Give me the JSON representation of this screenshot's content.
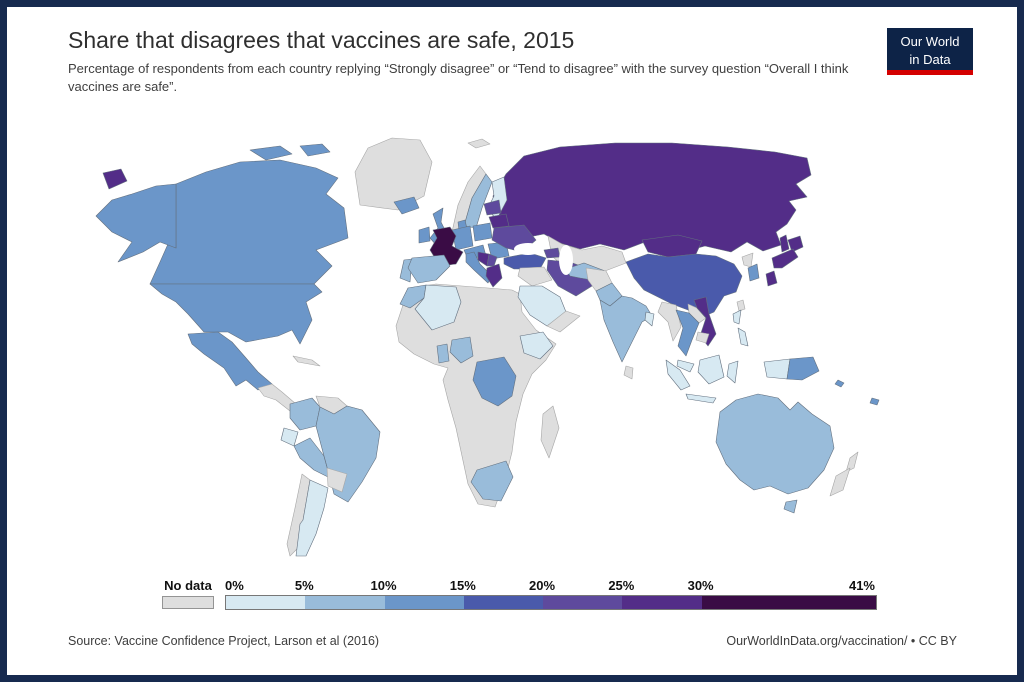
{
  "header": {
    "title": "Share that disagrees that vaccines are safe, 2015",
    "subtitle": "Percentage of respondents from each country replying “Strongly disagree” or “Tend to disagree” with the survey question “Overall I think vaccines are safe”."
  },
  "logo": {
    "line1": "Our World",
    "line2": "in Data",
    "background": "#0d2347",
    "accent": "#d40000"
  },
  "legend": {
    "no_data_label": "No data",
    "no_data_color": "#dedede",
    "tick_values": [
      0,
      5,
      10,
      15,
      20,
      25,
      30,
      41
    ],
    "tick_labels": [
      "0%",
      "5%",
      "10%",
      "15%",
      "20%",
      "25%",
      "30%",
      "41%"
    ]
  },
  "footer": {
    "source": "Source: Vaccine Confidence Project, Larson et al (2016)",
    "attribution": "OurWorldInData.org/vaccination/ • CC BY"
  },
  "chart_data": {
    "type": "choropleth_map",
    "title": "Share that disagrees that vaccines are safe, 2015",
    "unit": "%",
    "value_range": [
      0,
      41
    ],
    "legend_position": "bottom",
    "buckets": [
      {
        "range": "No data",
        "min": null,
        "max": null,
        "color": "#dedede"
      },
      {
        "range": "0-5%",
        "min": 0,
        "max": 5,
        "color": "#d7e9f2"
      },
      {
        "range": "5-10%",
        "min": 5,
        "max": 10,
        "color": "#99bcda"
      },
      {
        "range": "10-15%",
        "min": 10,
        "max": 15,
        "color": "#6b96c9"
      },
      {
        "range": "15-20%",
        "min": 15,
        "max": 20,
        "color": "#4a5aab"
      },
      {
        "range": "20-25%",
        "min": 20,
        "max": 25,
        "color": "#5e4a9d"
      },
      {
        "range": "25-30%",
        "min": 25,
        "max": 30,
        "color": "#532d88"
      },
      {
        "range": "30-41%",
        "min": 30,
        "max": 41,
        "color": "#3a0c45"
      }
    ],
    "regions": [
      {
        "name": "United States",
        "bucket": "10-15%"
      },
      {
        "name": "Canada",
        "bucket": "10-15%"
      },
      {
        "name": "Mexico",
        "bucket": "10-15%"
      },
      {
        "name": "Greenland",
        "bucket": "No data"
      },
      {
        "name": "Cuba",
        "bucket": "No data"
      },
      {
        "name": "Central America",
        "bucket": "No data"
      },
      {
        "name": "Colombia",
        "bucket": "5-10%"
      },
      {
        "name": "Venezuela",
        "bucket": "No data"
      },
      {
        "name": "Guyana",
        "bucket": "No data"
      },
      {
        "name": "Ecuador",
        "bucket": "0-5%"
      },
      {
        "name": "Peru",
        "bucket": "5-10%"
      },
      {
        "name": "Brazil",
        "bucket": "5-10%"
      },
      {
        "name": "Bolivia",
        "bucket": "No data"
      },
      {
        "name": "Chile",
        "bucket": "No data"
      },
      {
        "name": "Argentina",
        "bucket": "0-5%"
      },
      {
        "name": "Iceland",
        "bucket": "10-15%"
      },
      {
        "name": "Ireland",
        "bucket": "10-15%"
      },
      {
        "name": "United Kingdom",
        "bucket": "10-15%"
      },
      {
        "name": "Portugal",
        "bucket": "5-10%"
      },
      {
        "name": "Spain",
        "bucket": "5-10%"
      },
      {
        "name": "France",
        "bucket": "30-41%"
      },
      {
        "name": "Germany",
        "bucket": "10-15%"
      },
      {
        "name": "Denmark",
        "bucket": "10-15%"
      },
      {
        "name": "Norway",
        "bucket": "No data"
      },
      {
        "name": "Sweden",
        "bucket": "5-10%"
      },
      {
        "name": "Finland",
        "bucket": "0-5%"
      },
      {
        "name": "Poland",
        "bucket": "10-15%"
      },
      {
        "name": "Czechia",
        "bucket": "10-15%"
      },
      {
        "name": "Romania",
        "bucket": "10-15%"
      },
      {
        "name": "Ukraine",
        "bucket": "20-25%"
      },
      {
        "name": "Belarus",
        "bucket": "25-30%"
      },
      {
        "name": "Baltic states",
        "bucket": "20-25%"
      },
      {
        "name": "Italy",
        "bucket": "10-15%"
      },
      {
        "name": "Bosnia and Herzegovina",
        "bucket": "25-30%"
      },
      {
        "name": "Serbia",
        "bucket": "20-25%"
      },
      {
        "name": "Greece",
        "bucket": "25-30%"
      },
      {
        "name": "Turkey",
        "bucket": "15-20%"
      },
      {
        "name": "Russia",
        "bucket": "25-30%"
      },
      {
        "name": "Kazakhstan",
        "bucket": "No data"
      },
      {
        "name": "Caucasus",
        "bucket": "20-25%"
      },
      {
        "name": "Central Asia",
        "bucket": "5-10%"
      },
      {
        "name": "Iran",
        "bucket": "20-25%"
      },
      {
        "name": "Iraq",
        "bucket": "No data"
      },
      {
        "name": "Saudi Arabia",
        "bucket": "0-5%"
      },
      {
        "name": "Yemen",
        "bucket": "No data"
      },
      {
        "name": "Afghanistan",
        "bucket": "No data"
      },
      {
        "name": "Pakistan",
        "bucket": "5-10%"
      },
      {
        "name": "India",
        "bucket": "5-10%"
      },
      {
        "name": "Bangladesh",
        "bucket": "0-5%"
      },
      {
        "name": "Sri Lanka",
        "bucket": "No data"
      },
      {
        "name": "China",
        "bucket": "15-20%"
      },
      {
        "name": "Mongolia",
        "bucket": "25-30%"
      },
      {
        "name": "Japan",
        "bucket": "25-30%"
      },
      {
        "name": "South Korea",
        "bucket": "10-15%"
      },
      {
        "name": "North Korea",
        "bucket": "No data"
      },
      {
        "name": "Vietnam",
        "bucket": "25-30%"
      },
      {
        "name": "Laos",
        "bucket": "No data"
      },
      {
        "name": "Thailand",
        "bucket": "10-15%"
      },
      {
        "name": "Cambodia",
        "bucket": "No data"
      },
      {
        "name": "Myanmar",
        "bucket": "No data"
      },
      {
        "name": "Malaysia",
        "bucket": "0-5%"
      },
      {
        "name": "Indonesia",
        "bucket": "0-5%"
      },
      {
        "name": "Philippines",
        "bucket": "0-5%"
      },
      {
        "name": "Taiwan",
        "bucket": "No data"
      },
      {
        "name": "Papua New Guinea",
        "bucket": "10-15%"
      },
      {
        "name": "Solomon Islands",
        "bucket": "10-15%"
      },
      {
        "name": "Fiji",
        "bucket": "10-15%"
      },
      {
        "name": "Australia",
        "bucket": "5-10%"
      },
      {
        "name": "New Zealand",
        "bucket": "No data"
      },
      {
        "name": "Morocco",
        "bucket": "5-10%"
      },
      {
        "name": "Algeria",
        "bucket": "0-5%"
      },
      {
        "name": "Ghana",
        "bucket": "5-10%"
      },
      {
        "name": "Nigeria",
        "bucket": "5-10%"
      },
      {
        "name": "Democratic Republic of Congo",
        "bucket": "10-15%"
      },
      {
        "name": "Ethiopia",
        "bucket": "0-5%"
      },
      {
        "name": "South Africa",
        "bucket": "5-10%"
      },
      {
        "name": "Madagascar",
        "bucket": "No data"
      },
      {
        "name": "Africa (other)",
        "bucket": "No data"
      },
      {
        "name": "Svalbard",
        "bucket": "No data"
      }
    ]
  }
}
